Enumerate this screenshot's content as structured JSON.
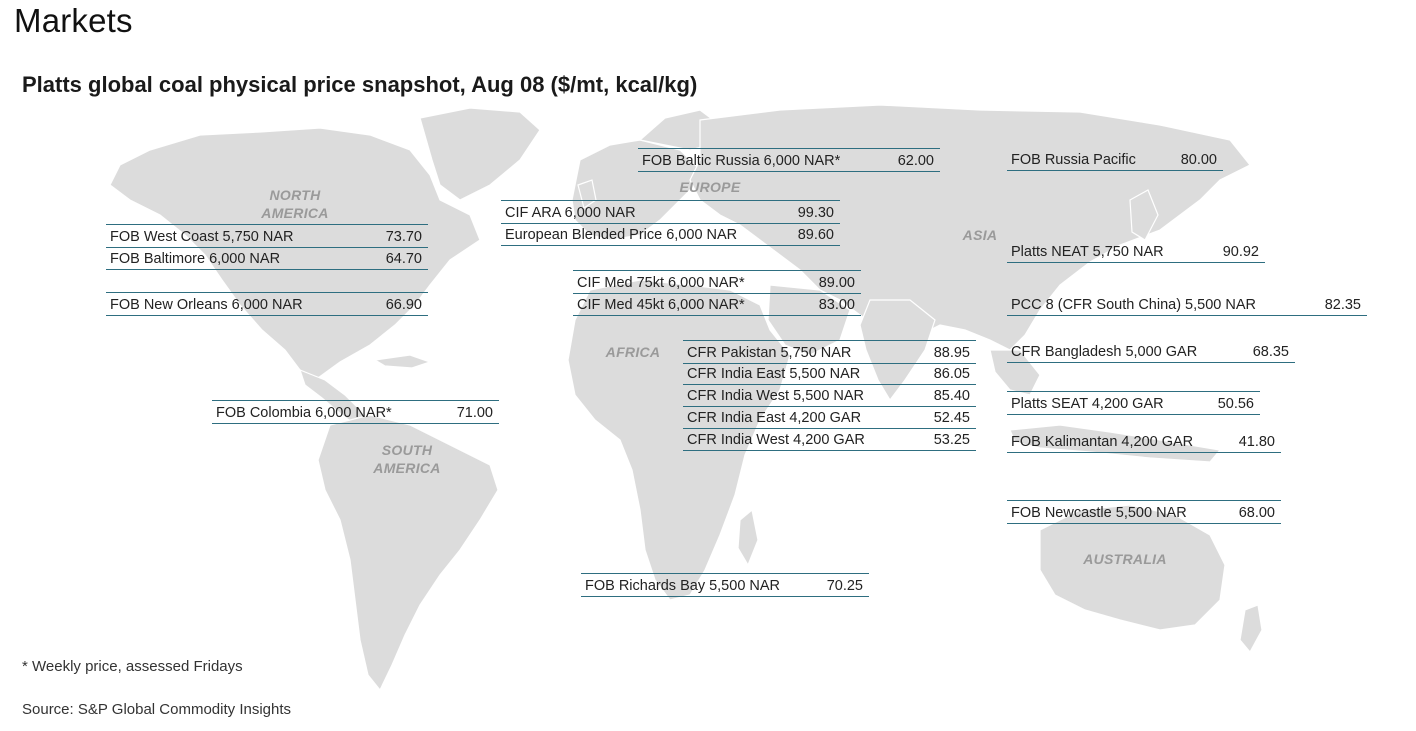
{
  "header": {
    "section": "Markets",
    "title": "Platts global coal physical price snapshot, Aug 08 ($/mt, kcal/kg)"
  },
  "regions": {
    "north_america": "NORTH AMERICA",
    "south_america": "SOUTH AMERICA",
    "europe": "EUROPE",
    "asia": "ASIA",
    "africa": "AFRICA",
    "australia": "AUSTRALIA"
  },
  "prices": [
    {
      "name": "FOB West Coast 5,750 NAR",
      "value": "73.70"
    },
    {
      "name": "FOB Baltimore 6,000 NAR",
      "value": "64.70"
    },
    {
      "name": "FOB New Orleans 6,000 NAR",
      "value": "66.90"
    },
    {
      "name": "FOB Colombia 6,000 NAR*",
      "value": "71.00"
    },
    {
      "name": "FOB Baltic Russia 6,000 NAR*",
      "value": "62.00"
    },
    {
      "name": "CIF ARA 6,000 NAR",
      "value": "99.30"
    },
    {
      "name": "European Blended Price 6,000 NAR",
      "value": "89.60"
    },
    {
      "name": "CIF Med 75kt 6,000 NAR*",
      "value": "89.00"
    },
    {
      "name": "CIF Med 45kt 6,000 NAR*",
      "value": "83.00"
    },
    {
      "name": "CFR Pakistan 5,750 NAR",
      "value": "88.95"
    },
    {
      "name": "CFR India East 5,500 NAR",
      "value": "86.05"
    },
    {
      "name": "CFR India West 5,500 NAR",
      "value": "85.40"
    },
    {
      "name": "CFR India East 4,200 GAR",
      "value": "52.45"
    },
    {
      "name": "CFR India West 4,200 GAR",
      "value": "53.25"
    },
    {
      "name": "FOB Richards Bay 5,500 NAR",
      "value": "70.25"
    },
    {
      "name": "FOB Russia Pacific",
      "value": "80.00"
    },
    {
      "name": "Platts NEAT 5,750 NAR",
      "value": "90.92"
    },
    {
      "name": "PCC 8 (CFR South China) 5,500 NAR",
      "value": "82.35"
    },
    {
      "name": "CFR Bangladesh 5,000 GAR",
      "value": "68.35"
    },
    {
      "name": "Platts SEAT 4,200 GAR",
      "value": "50.56"
    },
    {
      "name": "FOB Kalimantan 4,200 GAR",
      "value": "41.80"
    },
    {
      "name": "FOB Newcastle 5,500 NAR",
      "value": "68.00"
    }
  ],
  "footer": {
    "note": "* Weekly price, assessed Fridays",
    "source": "Source: S&P Global Commodity Insights"
  },
  "colors": {
    "land": "#dcdcdc",
    "rule": "#2e6e80",
    "region_label": "#9a9a9a"
  }
}
